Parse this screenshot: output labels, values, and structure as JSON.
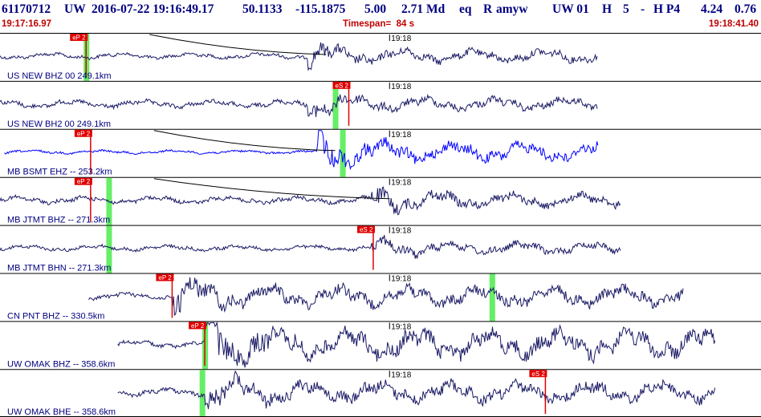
{
  "header": {
    "event_id": "61170712",
    "network": "UW",
    "date_time": "2016-07-22 19:16:49.17",
    "lat": "50.1133",
    "lon": "-115.1875",
    "depth": "5.00",
    "magnitude": "2.71 Md",
    "event_type": "eq",
    "review": "R",
    "author": "amyw",
    "source": "UW 01",
    "quality": "H",
    "count": "5",
    "dash": "-",
    "phase_quality": "H P4",
    "value1": "4.24",
    "value2": "0.76"
  },
  "time_bar": {
    "start": "19:17:16.97",
    "timespan": "Timespan=  84 s",
    "end": "19:18:41.40"
  },
  "colors": {
    "title": "#000080",
    "subtitle": "#c00000",
    "trace": "#1a1a66",
    "trace_blue": "#0000ff",
    "pick": "#e00000",
    "window": "#66ee66",
    "envelope": "#000000"
  },
  "minute_mark": "19:18",
  "traces": [
    {
      "label": "US NEW BHZ 00 249.1km",
      "pick_label": "eP 2",
      "pick_time": 9.5,
      "window_time": 9.5,
      "start": 0,
      "end": 66,
      "arrival": 34,
      "amp": 9,
      "ramp": 0.45,
      "color": "trace",
      "envelope": true
    },
    {
      "label": "US NEW BH2 00 249.1km",
      "pick_label": "eS 2",
      "pick_time": 38.5,
      "window_time": 37,
      "start": 0,
      "end": 66,
      "arrival": 34,
      "amp": 9,
      "ramp": 0.6,
      "color": "trace",
      "envelope": false
    },
    {
      "label": "MB BSMT EHZ -- 253.2km",
      "pick_label": "eP 2",
      "pick_time": 10,
      "window_time": 37.8,
      "start": 0.5,
      "end": 66,
      "arrival": 35,
      "amp": 13,
      "ramp": 0.2,
      "color": "trace_blue",
      "envelope": true
    },
    {
      "label": "MB JTMT BHZ -- 271.3km",
      "pick_label": "eP 2",
      "pick_time": 10,
      "window_time": 12,
      "start": 0,
      "end": 68.5,
      "arrival": 41,
      "amp": 10,
      "ramp": 0.5,
      "color": "trace",
      "envelope": true
    },
    {
      "label": "MB JTMT BHN -- 271.3km",
      "pick_label": "eS 2",
      "pick_time": 41.2,
      "window_time": 12,
      "start": 0,
      "end": 68.5,
      "arrival": 41,
      "amp": 8,
      "ramp": 0.5,
      "color": "trace",
      "envelope": false
    },
    {
      "label": "CN PNT BHZ -- 330.5km",
      "pick_label": "eP 2",
      "pick_time": 19,
      "window_time": 54.3,
      "start": 9.8,
      "end": 75.5,
      "arrival": 19,
      "amp": 14,
      "ramp": 0.35,
      "color": "trace",
      "envelope": false
    },
    {
      "label": "UW OMAK BHZ -- 358.6km",
      "pick_label": "eP 2",
      "pick_time": 22.6,
      "window_time": 22.6,
      "start": 13,
      "end": 79,
      "arrival": 22.6,
      "amp": 20,
      "ramp": 0.25,
      "color": "trace",
      "envelope": false
    },
    {
      "label": "UW OMAK BHE -- 358.6km",
      "pick_label": "eS 2",
      "pick_time": 60.2,
      "window_time": 22.3,
      "start": 13,
      "end": 79,
      "arrival": 22.6,
      "amp": 14,
      "ramp": 0.4,
      "color": "trace",
      "envelope": false
    }
  ],
  "timescale": {
    "duration_s": 84,
    "minute_offset_s": 43
  }
}
